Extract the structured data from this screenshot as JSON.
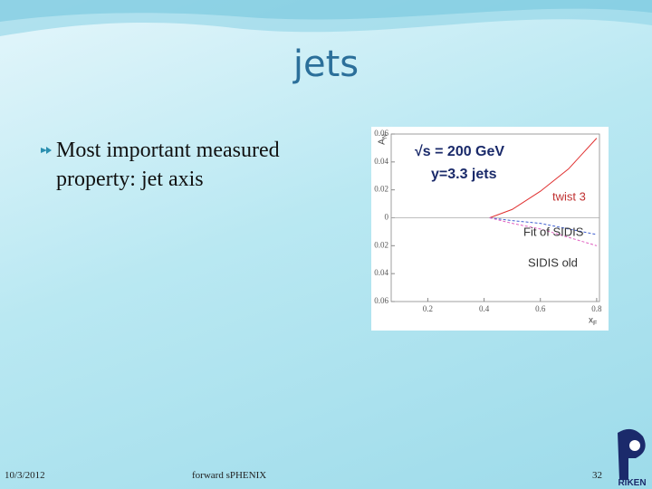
{
  "slide": {
    "title": "jets",
    "bullet": "Most important measured property: jet axis",
    "date": "10/3/2012",
    "footer": "forward sPHENIX",
    "page": "32",
    "logo": "RIKEN"
  },
  "chart_data": {
    "type": "line",
    "annotations": [
      "√s = 200 GeV",
      "y=3.3 jets"
    ],
    "ylabel": "A",
    "ylabel_sub": "N",
    "xlabel": "x",
    "xlabel_sub": "F",
    "x": [
      0.42,
      0.5,
      0.6,
      0.7,
      0.8
    ],
    "series": [
      {
        "name": "twist 3",
        "color": "#e03030",
        "dash": false,
        "values": [
          0,
          0.006,
          0.019,
          0.035,
          0.057
        ]
      },
      {
        "name": "Fit of SIDIS",
        "color": "#4060d0",
        "dash": true,
        "values": [
          0,
          -0.002,
          -0.004,
          -0.008,
          -0.012
        ]
      },
      {
        "name": "SIDIS old",
        "color": "#e060c0",
        "dash": true,
        "values": [
          0,
          -0.004,
          -0.008,
          -0.014,
          -0.02
        ]
      }
    ],
    "xlim": [
      0.07,
      0.81
    ],
    "ylim": [
      -0.06,
      0.06
    ],
    "xticks": [
      0.2,
      0.4,
      0.6,
      0.8
    ],
    "yticks": [
      {
        "value": -0.06,
        "label": "0.06"
      },
      {
        "value": -0.04,
        "label": "0.04"
      },
      {
        "value": -0.02,
        "label": "0.02"
      },
      0,
      0.02,
      0.04,
      0.06
    ]
  }
}
